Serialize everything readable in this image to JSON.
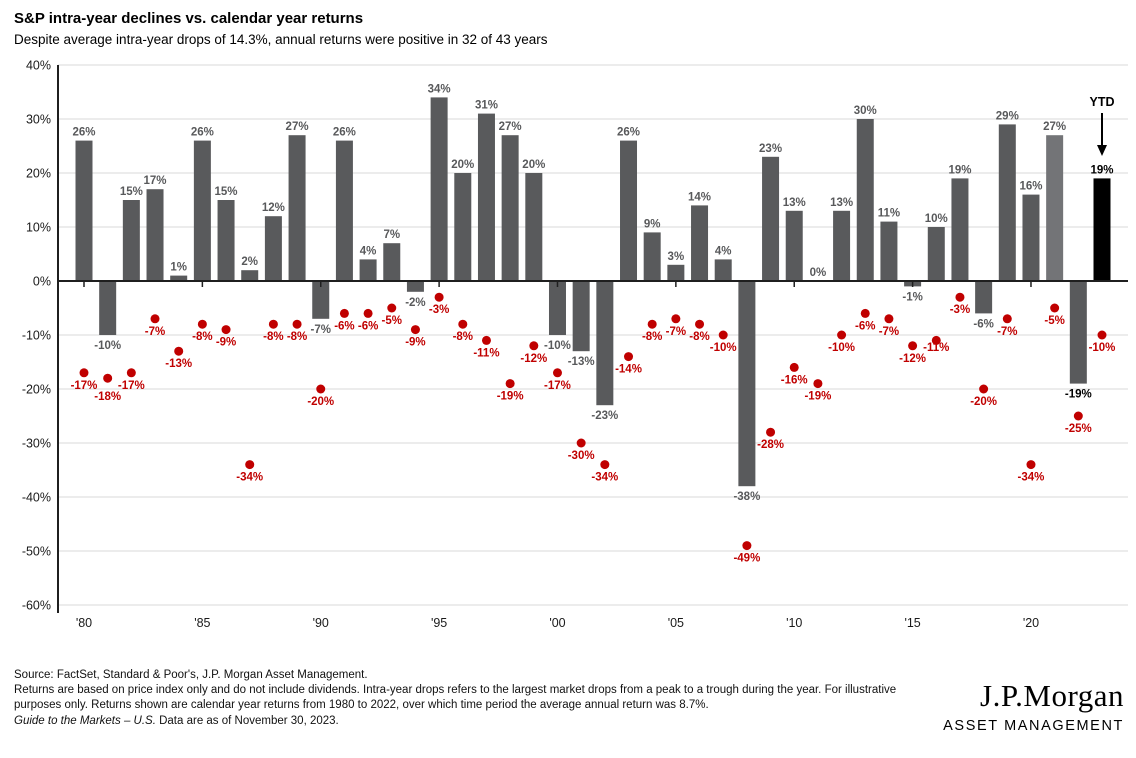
{
  "header": {
    "title": "S&P intra-year declines vs. calendar year returns",
    "subtitle": "Despite average intra-year drops of 14.3%, annual returns were positive in 32 of 43 years"
  },
  "chart_data": {
    "type": "bar",
    "title": "S&P intra-year declines vs. calendar year returns",
    "series_info": [
      {
        "name": "calendar-year-return",
        "type": "bar",
        "color": "#595a5c"
      },
      {
        "name": "intra-year-decline",
        "type": "scatter",
        "color": "#c00000"
      }
    ],
    "categories": [
      "1980",
      "1981",
      "1982",
      "1983",
      "1984",
      "1985",
      "1986",
      "1987",
      "1988",
      "1989",
      "1990",
      "1991",
      "1992",
      "1993",
      "1994",
      "1995",
      "1996",
      "1997",
      "1998",
      "1999",
      "2000",
      "2001",
      "2002",
      "2003",
      "2004",
      "2005",
      "2006",
      "2007",
      "2008",
      "2009",
      "2010",
      "2011",
      "2012",
      "2013",
      "2014",
      "2015",
      "2016",
      "2017",
      "2018",
      "2019",
      "2020",
      "2021",
      "2022",
      "YTD"
    ],
    "points": [
      {
        "year": "1980",
        "return": 26,
        "decline": -17
      },
      {
        "year": "1981",
        "return": -10,
        "decline": -18
      },
      {
        "year": "1982",
        "return": 15,
        "decline": -17
      },
      {
        "year": "1983",
        "return": 17,
        "decline": -7
      },
      {
        "year": "1984",
        "return": 1,
        "decline": -13
      },
      {
        "year": "1985",
        "return": 26,
        "decline": -8
      },
      {
        "year": "1986",
        "return": 15,
        "decline": -9
      },
      {
        "year": "1987",
        "return": 2,
        "decline": -34
      },
      {
        "year": "1988",
        "return": 12,
        "decline": -8
      },
      {
        "year": "1989",
        "return": 27,
        "decline": -8
      },
      {
        "year": "1990",
        "return": -7,
        "decline": -20
      },
      {
        "year": "1991",
        "return": 26,
        "decline": -6
      },
      {
        "year": "1992",
        "return": 4,
        "decline": -6
      },
      {
        "year": "1993",
        "return": 7,
        "decline": -5
      },
      {
        "year": "1994",
        "return": -2,
        "decline": -9
      },
      {
        "year": "1995",
        "return": 34,
        "decline": -3
      },
      {
        "year": "1996",
        "return": 20,
        "decline": -8
      },
      {
        "year": "1997",
        "return": 31,
        "decline": -11
      },
      {
        "year": "1998",
        "return": 27,
        "decline": -19
      },
      {
        "year": "1999",
        "return": 20,
        "decline": -12
      },
      {
        "year": "2000",
        "return": -10,
        "decline": -17
      },
      {
        "year": "2001",
        "return": -13,
        "decline": -30
      },
      {
        "year": "2002",
        "return": -23,
        "decline": -34
      },
      {
        "year": "2003",
        "return": 26,
        "decline": -14
      },
      {
        "year": "2004",
        "return": 9,
        "decline": -8
      },
      {
        "year": "2005",
        "return": 3,
        "decline": -7
      },
      {
        "year": "2006",
        "return": 14,
        "decline": -8
      },
      {
        "year": "2007",
        "return": 4,
        "decline": -10
      },
      {
        "year": "2008",
        "return": -38,
        "decline": -49
      },
      {
        "year": "2009",
        "return": 23,
        "decline": -28
      },
      {
        "year": "2010",
        "return": 13,
        "decline": -16
      },
      {
        "year": "2011",
        "return": 0,
        "decline": -19
      },
      {
        "year": "2012",
        "return": 13,
        "decline": -10
      },
      {
        "year": "2013",
        "return": 30,
        "decline": -6
      },
      {
        "year": "2014",
        "return": 11,
        "decline": -7
      },
      {
        "year": "2015",
        "return": -1,
        "decline": -12
      },
      {
        "year": "2016",
        "return": 10,
        "decline": -11
      },
      {
        "year": "2017",
        "return": 19,
        "decline": -3
      },
      {
        "year": "2018",
        "return": -6,
        "decline": -20
      },
      {
        "year": "2019",
        "return": 29,
        "decline": -7
      },
      {
        "year": "2020",
        "return": 16,
        "decline": -34
      },
      {
        "year": "2021",
        "return": 27,
        "decline": -5
      },
      {
        "year": "2022",
        "return": -19,
        "decline": -25
      },
      {
        "year": "YTD",
        "return": 19,
        "decline": -10
      }
    ],
    "y_axis": {
      "min": -60,
      "max": 40,
      "step": 10,
      "tick_values": [
        40,
        30,
        20,
        10,
        0,
        -10,
        -20,
        -30,
        -40,
        -50,
        -60
      ],
      "tick_labels": [
        "40%",
        "30%",
        "20%",
        "10%",
        "0%",
        "-10%",
        "-20%",
        "-30%",
        "-40%",
        "-50%",
        "-60%"
      ]
    },
    "x_axis": {
      "ticks": [
        {
          "year": "1980",
          "label": "'80"
        },
        {
          "year": "1985",
          "label": "'85"
        },
        {
          "year": "1990",
          "label": "'90"
        },
        {
          "year": "1995",
          "label": "'95"
        },
        {
          "year": "2000",
          "label": "'00"
        },
        {
          "year": "2005",
          "label": "'05"
        },
        {
          "year": "2010",
          "label": "'10"
        },
        {
          "year": "2015",
          "label": "'15"
        },
        {
          "year": "2020",
          "label": "'20"
        }
      ]
    },
    "ytd_annotation": {
      "label": "YTD"
    },
    "emphasis": {
      "light_bar_year": "2021",
      "black_bar_year": "YTD",
      "black_label_years": [
        "2022",
        "YTD"
      ]
    },
    "colors": {
      "bar": "#595a5c",
      "bar_light": "#737477",
      "bar_black": "#000000",
      "dot": "#c00000",
      "bar_label": "#58595b",
      "black_label": "#000000",
      "grid": "#d9d9d9",
      "axis": "#1f1f1f",
      "tick_text": "#1a1a1a"
    },
    "legend_position": "none",
    "grid": "horizontal"
  },
  "footer": {
    "source_line": "Source: FactSet, Standard & Poor's, J.P. Morgan Asset Management.",
    "note": "Returns are based on price index only and do not include dividends.  Intra-year drops refers to the largest market drops from a peak to a trough during the year. For illustrative purposes only. Returns shown are calendar year returns from 1980 to 2022, over which time period the average annual return was 8.7%.",
    "gtm_italic": "Guide to the Markets – U.S.",
    "gtm_rest": " Data are as of November 30, 2023."
  },
  "logo": {
    "line1": "J.P.Morgan",
    "line2": "ASSET MANAGEMENT"
  }
}
